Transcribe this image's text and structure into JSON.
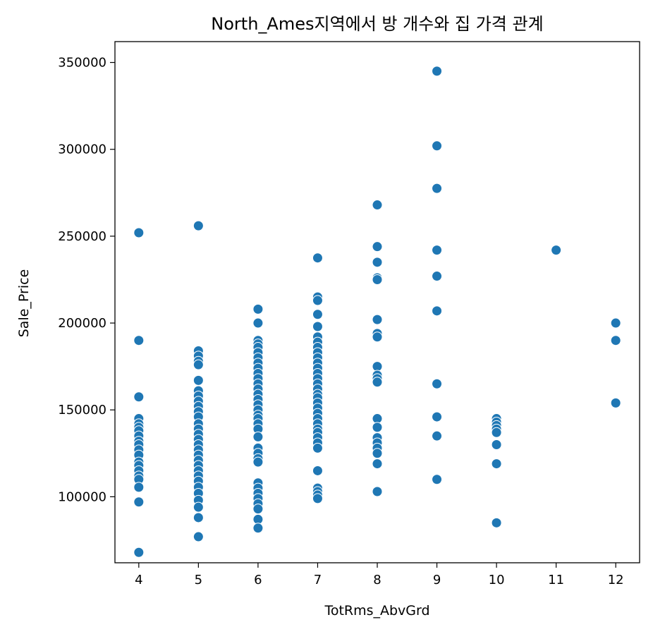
{
  "chart_data": {
    "type": "scatter",
    "title": "North_Ames지역에서 방 개수와 집 가격 관계",
    "xlabel": "TotRms_AbvGrd",
    "ylabel": "Sale_Price",
    "xlim": [
      3.6,
      12.4
    ],
    "ylim": [
      62000,
      362000
    ],
    "xticks": [
      4,
      5,
      6,
      7,
      8,
      9,
      10,
      11,
      12
    ],
    "yticks": [
      100000,
      150000,
      200000,
      250000,
      300000,
      350000
    ],
    "grid": false,
    "marker_color": "#1f77b4",
    "points": [
      {
        "x": 4,
        "y": [
          252000,
          190000,
          157500,
          145000,
          142000,
          140000,
          138000,
          135000,
          132000,
          130000,
          127000,
          124000,
          120000,
          118000,
          115000,
          112000,
          110000,
          105500,
          97000,
          68000
        ]
      },
      {
        "x": 5,
        "y": [
          256000,
          184000,
          181000,
          178000,
          176000,
          167000,
          161000,
          158000,
          155000,
          152000,
          149000,
          146000,
          142000,
          139000,
          136000,
          133000,
          130000,
          127000,
          124000,
          121000,
          118000,
          115000,
          112000,
          109000,
          105500,
          102000,
          98000,
          94000,
          88000,
          77000
        ]
      },
      {
        "x": 6,
        "y": [
          208000,
          200000,
          190000,
          188000,
          186000,
          183000,
          180000,
          177000,
          174000,
          171000,
          168000,
          165000,
          162000,
          159000,
          156000,
          153000,
          150000,
          147000,
          145000,
          142000,
          139000,
          134500,
          128000,
          125000,
          122000,
          120000,
          108000,
          105000,
          102000,
          99000,
          96000,
          93000,
          87000,
          82000
        ]
      },
      {
        "x": 7,
        "y": [
          237500,
          215000,
          213000,
          205000,
          198000,
          192000,
          189000,
          186000,
          183000,
          180000,
          177000,
          174000,
          171000,
          168000,
          165000,
          162000,
          159000,
          157000,
          154000,
          151000,
          148000,
          145000,
          142000,
          139000,
          137000,
          134000,
          131000,
          128000,
          115000,
          105000,
          103000,
          101000,
          99000
        ]
      },
      {
        "x": 8,
        "y": [
          268000,
          244000,
          235000,
          226000,
          225000,
          202000,
          194000,
          192000,
          175000,
          170000,
          168000,
          166000,
          145000,
          140000,
          134000,
          131000,
          128000,
          125000,
          119000,
          103000
        ]
      },
      {
        "x": 9,
        "y": [
          345000,
          302000,
          277500,
          242000,
          227000,
          207000,
          165000,
          146000,
          135000,
          110000
        ]
      },
      {
        "x": 10,
        "y": [
          145000,
          143000,
          141000,
          139000,
          137000,
          130000,
          119000,
          85000
        ]
      },
      {
        "x": 11,
        "y": [
          242000
        ]
      },
      {
        "x": 12,
        "y": [
          200000,
          190000,
          154000
        ]
      }
    ]
  }
}
